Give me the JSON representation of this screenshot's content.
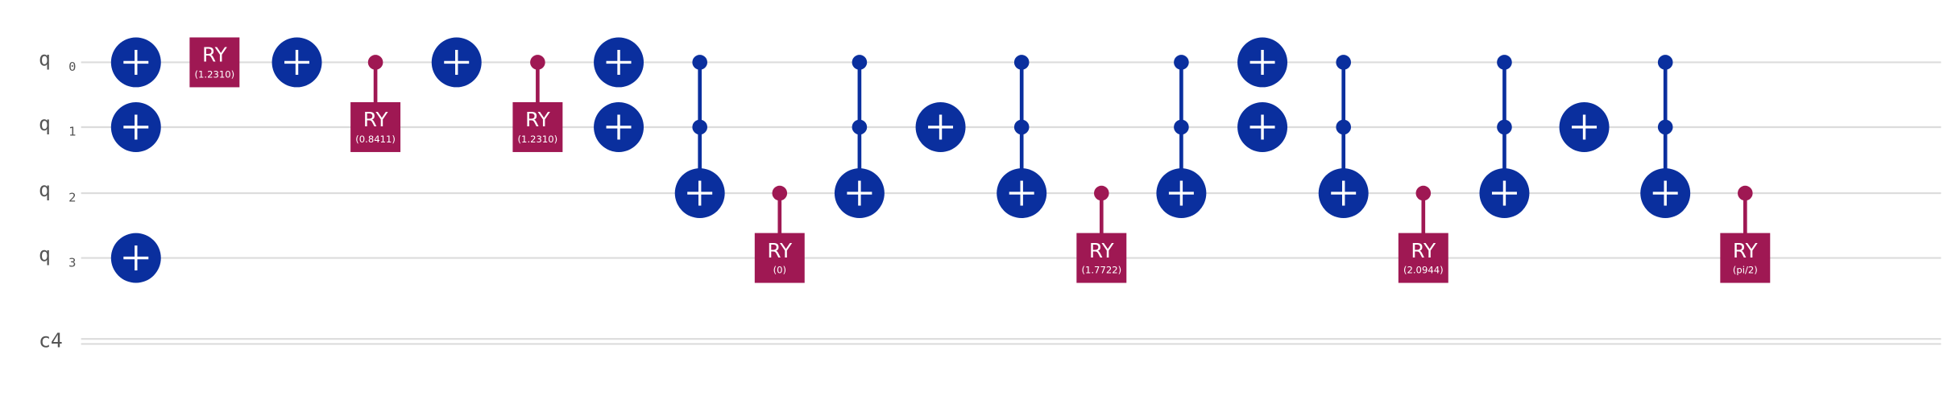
{
  "wires": [
    {
      "label": "q",
      "index": 0
    },
    {
      "label": "q",
      "index": 1
    },
    {
      "label": "q",
      "index": 2
    },
    {
      "label": "q",
      "index": 3
    }
  ],
  "classical_wire": {
    "label": "c4"
  },
  "gates": [
    {
      "label": "RY",
      "param": "(1.2310)"
    },
    {
      "label": "RY",
      "param": "(0.8411)"
    },
    {
      "label": "RY",
      "param": "(1.2310)"
    },
    {
      "label": "RY",
      "param": "(0)"
    },
    {
      "label": "RY",
      "param": "(1.7722)"
    },
    {
      "label": "RY",
      "param": "(2.0944)"
    },
    {
      "label": "RY",
      "param": "(pi/2)"
    }
  ]
}
